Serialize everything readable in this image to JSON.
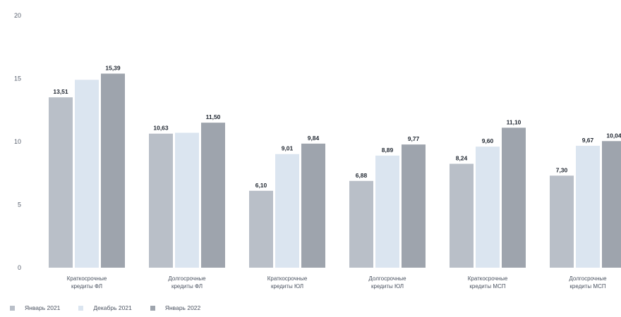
{
  "chart_data": {
    "type": "bar",
    "categories": [
      [
        "Краткосрочные",
        "кредиты ФЛ"
      ],
      [
        "Долгосрочные",
        "кредиты ФЛ"
      ],
      [
        "Краткосрочные",
        "кредиты ЮЛ"
      ],
      [
        "Долгосрочные",
        "кредиты ЮЛ"
      ],
      [
        "Краткосрочные",
        "кредиты МСП"
      ],
      [
        "Долгосрочные",
        "кредиты МСП"
      ]
    ],
    "series": [
      {
        "name": "Январь 2021",
        "color": "#b9bfc8",
        "values": [
          13.51,
          10.63,
          6.1,
          6.88,
          8.24,
          7.3
        ],
        "labels": [
          "13,51",
          "10,63",
          "6,10",
          "6,88",
          "8,24",
          "7,30"
        ]
      },
      {
        "name": "Декабрь 2021",
        "color": "#dbe5f0",
        "values": [
          14.9,
          10.7,
          9.01,
          8.89,
          9.6,
          9.67
        ],
        "labels": [
          "",
          "",
          "9,01",
          "8,89",
          "9,60",
          "9,67"
        ]
      },
      {
        "name": "Январь 2022",
        "color": "#9ea4ad",
        "values": [
          15.39,
          11.5,
          9.84,
          9.77,
          11.1,
          10.04
        ],
        "labels": [
          "15,39",
          "11,50",
          "9,84",
          "9,77",
          "11,10",
          "10,04"
        ]
      }
    ],
    "yticks": [
      "0",
      "5",
      "10",
      "15",
      "20"
    ],
    "ylim": [
      0,
      20
    ],
    "grid": false,
    "legend_position": "bottom-left"
  },
  "legend": [
    {
      "label": "Январь 2021",
      "color": "#b9bfc8"
    },
    {
      "label": "Декабрь 2021",
      "color": "#dbe5f0"
    },
    {
      "label": "Январь 2022",
      "color": "#9ea4ad"
    }
  ]
}
